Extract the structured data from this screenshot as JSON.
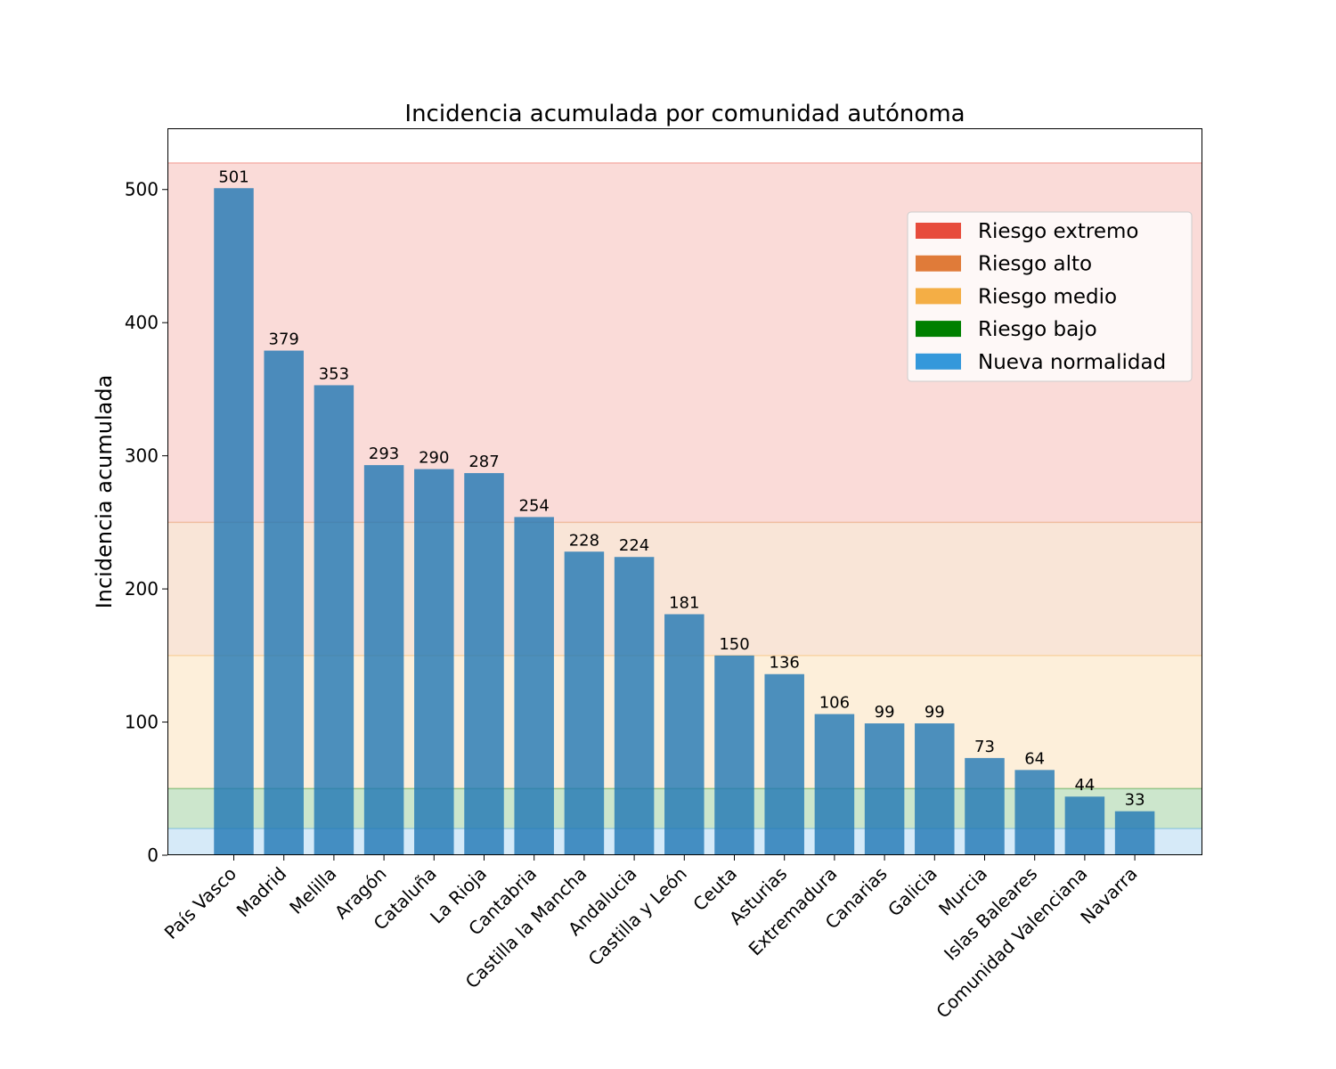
{
  "chart_data": {
    "type": "bar",
    "title": "Incidencia acumulada por comunidad autónoma",
    "xlabel": "",
    "ylabel": "Incidencia acumulada",
    "ylim": [
      0,
      546
    ],
    "yticks": [
      0,
      100,
      200,
      300,
      400,
      500
    ],
    "categories": [
      "País Vasco",
      "Madrid",
      "Melilla",
      "Aragón",
      "Cataluña",
      "La Rioja",
      "Cantabria",
      "Castilla la Mancha",
      "Andalucia",
      "Castilla y León",
      "Ceuta",
      "Asturias",
      "Extremadura",
      "Canarias",
      "Galicia",
      "Murcia",
      "Islas Baleares",
      "Comunidad Valenciana",
      "Navarra"
    ],
    "values": [
      501,
      379,
      353,
      293,
      290,
      287,
      254,
      228,
      224,
      181,
      150,
      136,
      106,
      99,
      99,
      73,
      64,
      44,
      33
    ],
    "data_labels": [
      "501",
      "379",
      "353",
      "293",
      "290",
      "287",
      "254",
      "228",
      "224",
      "181",
      "150",
      "136",
      "106",
      "99",
      "99",
      "73",
      "64",
      "44",
      "33"
    ],
    "bar_color": "#1f77b4",
    "risk_bands": [
      {
        "name": "Riesgo extremo",
        "from": 250,
        "to": 520,
        "color": "#e74c3c"
      },
      {
        "name": "Riesgo alto",
        "from": 150,
        "to": 250,
        "color": "#e07b39"
      },
      {
        "name": "Riesgo medio",
        "from": 50,
        "to": 150,
        "color": "#f4ae45"
      },
      {
        "name": "Riesgo bajo",
        "from": 20,
        "to": 50,
        "color": "#008000"
      },
      {
        "name": "Nueva normalidad",
        "from": 0,
        "to": 20,
        "color": "#3498db"
      }
    ],
    "legend": {
      "placement": "upper-right"
    },
    "grid": false
  }
}
